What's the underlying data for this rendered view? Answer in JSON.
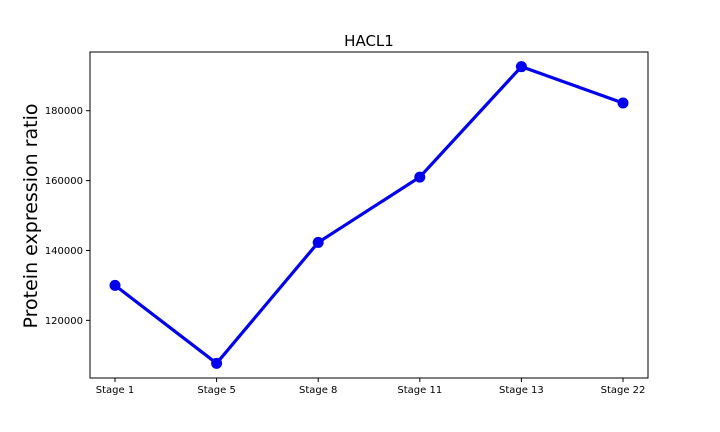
{
  "chart_data": {
    "type": "line",
    "title": "HACL1",
    "xlabel": "",
    "ylabel": "Protein expression ratio",
    "categories": [
      "Stage 1",
      "Stage 5",
      "Stage 8",
      "Stage 11",
      "Stage 13",
      "Stage 22"
    ],
    "series": [
      {
        "values": [
          130000,
          107700,
          142300,
          161000,
          192600,
          182200
        ]
      }
    ],
    "ylim": [
      103500,
      196800
    ],
    "yticks": [
      120000,
      140000,
      160000,
      180000
    ],
    "ytick_labels": [
      "120000",
      "140000",
      "160000",
      "180000"
    ],
    "grid": false,
    "line_color": "#0000ee",
    "marker": "circle"
  }
}
